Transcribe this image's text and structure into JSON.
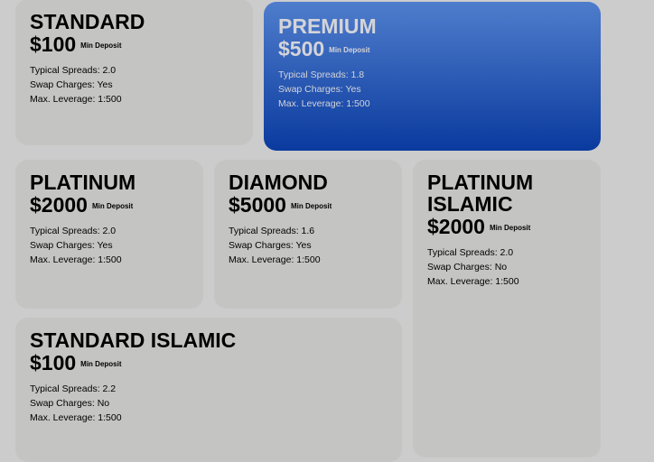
{
  "accounts": [
    {
      "name": "STANDARD",
      "price": "$100",
      "price_note": "Min Deposit",
      "spreads": "Typical Spreads: 2.0",
      "swap": "Swap Charges: Yes",
      "leverage": "Max. Leverage: 1:500"
    },
    {
      "name": "PREMIUM",
      "price": "$500",
      "price_note": "Min Deposit",
      "spreads": "Typical Spreads: 1.8",
      "swap": "Swap Charges: Yes",
      "leverage": "Max. Leverage: 1:500",
      "highlighted": true
    },
    {
      "name": "PLATINUM",
      "price": "$2000",
      "price_note": "Min Deposit",
      "spreads": "Typical Spreads: 2.0",
      "swap": "Swap Charges: Yes",
      "leverage": "Max. Leverage: 1:500"
    },
    {
      "name": "DIAMOND",
      "price": "$5000",
      "price_note": "Min Deposit",
      "spreads": "Typical Spreads: 1.6",
      "swap": "Swap Charges: Yes",
      "leverage": "Max. Leverage: 1:500"
    },
    {
      "name": "PLATINUM ISLAMIC",
      "price": "$2000",
      "price_note": "Min Deposit",
      "spreads": "Typical Spreads: 2.0",
      "swap": "Swap Charges: No",
      "leverage": "Max. Leverage: 1:500"
    },
    {
      "name": "STANDARD ISLAMIC",
      "price": "$100",
      "price_note": "Min Deposit",
      "spreads": "Typical Spreads: 2.2",
      "swap": "Swap Charges: No",
      "leverage": "Max. Leverage: 1:500"
    }
  ],
  "colors": {
    "background": "#cccccc",
    "card": "#c4c4c2",
    "premium_top": "#4f7dcc",
    "premium_bottom": "#0a3a9e"
  }
}
